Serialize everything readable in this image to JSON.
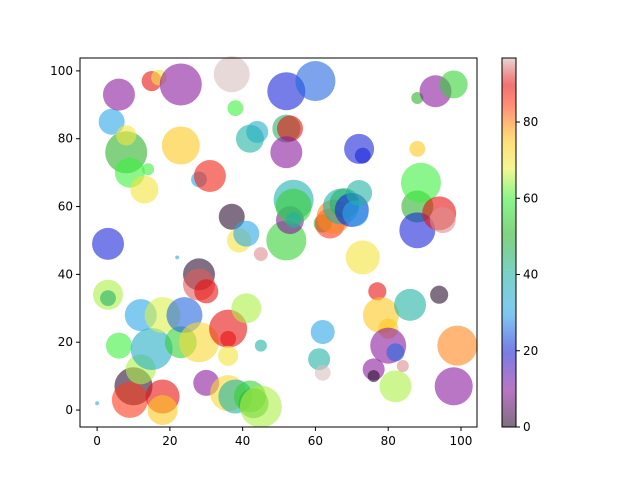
{
  "chart_data": {
    "type": "scatter",
    "x": [
      0,
      3,
      3,
      3,
      4,
      6,
      6,
      8,
      8,
      9,
      10,
      9,
      12,
      12,
      13,
      14,
      15,
      15,
      17,
      18,
      18,
      18,
      22,
      23,
      23,
      23,
      24,
      28,
      28,
      28,
      28,
      30,
      30,
      31,
      36,
      36,
      36,
      36,
      37,
      37,
      38,
      38,
      39,
      41,
      41,
      42,
      42,
      43,
      44,
      45,
      45,
      45,
      52,
      53,
      52,
      52,
      52,
      53,
      54,
      54,
      54,
      60,
      61,
      62,
      62,
      62,
      64,
      65,
      67,
      68,
      70,
      71,
      72,
      72,
      73,
      73,
      77,
      76,
      76,
      78,
      80,
      80,
      82,
      82,
      84,
      86,
      88,
      88,
      88,
      88,
      89,
      93,
      94,
      94,
      95,
      98,
      98,
      99
    ],
    "y": [
      2,
      49,
      34,
      33,
      85,
      93,
      19,
      76,
      81,
      70,
      7,
      3,
      28,
      12,
      65,
      71,
      18,
      97,
      98,
      4,
      0,
      28,
      45,
      96,
      78,
      20,
      28,
      20,
      40,
      37,
      68,
      35,
      8,
      69,
      24,
      21,
      16,
      5,
      57,
      99,
      89,
      4,
      50,
      30,
      52,
      80,
      4,
      2,
      82,
      19,
      46,
      1,
      83,
      83,
      76,
      94,
      50,
      56,
      62,
      60,
      56,
      97,
      15,
      11,
      23,
      55,
      55,
      57,
      60,
      61,
      59,
      58,
      64,
      77,
      75,
      45,
      35,
      12,
      10,
      28,
      24,
      19,
      17,
      7,
      13,
      31,
      77,
      92,
      60,
      53,
      67,
      94,
      34,
      58,
      56,
      96,
      7,
      19
    ],
    "sizes": [
      8,
      530,
      465,
      130,
      350,
      530,
      350,
      915,
      210,
      465,
      750,
      670,
      530,
      465,
      405,
      75,
      915,
      210,
      130,
      600,
      465,
      670,
      8,
      915,
      750,
      530,
      670,
      830,
      530,
      530,
      130,
      300,
      350,
      530,
      750,
      130,
      210,
      670,
      350,
      670,
      130,
      600,
      300,
      465,
      350,
      405,
      530,
      465,
      250,
      75,
      100,
      915,
      405,
      350,
      530,
      750,
      830,
      405,
      830,
      670,
      130,
      830,
      250,
      130,
      300,
      170,
      465,
      600,
      670,
      465,
      600,
      350,
      350,
      465,
      130,
      600,
      170,
      250,
      75,
      670,
      210,
      670,
      170,
      530,
      75,
      530,
      130,
      75,
      530,
      670,
      830,
      530,
      170,
      600,
      350,
      405,
      750,
      830
    ],
    "c": [
      30,
      20,
      65,
      45,
      30,
      10,
      60,
      50,
      70,
      60,
      0,
      85,
      30,
      65,
      70,
      60,
      35,
      90,
      70,
      90,
      75,
      67,
      30,
      10,
      75,
      55,
      25,
      72,
      0,
      93,
      30,
      90,
      10,
      88,
      90,
      90,
      70,
      72,
      0,
      97,
      60,
      40,
      70,
      65,
      30,
      40,
      55,
      50,
      35,
      40,
      95,
      65,
      45,
      90,
      10,
      20,
      55,
      10,
      38,
      55,
      40,
      25,
      40,
      97,
      30,
      50,
      85,
      80,
      40,
      45,
      20,
      30,
      40,
      20,
      20,
      70,
      90,
      10,
      0,
      75,
      75,
      10,
      25,
      65,
      95,
      40,
      75,
      50,
      50,
      20,
      60,
      10,
      0,
      90,
      95,
      55,
      10,
      80
    ],
    "alpha": 0.6,
    "xlim": [
      -4.7,
      104.4
    ],
    "ylim": [
      -5,
      103.8
    ],
    "xticks": [
      0,
      20,
      40,
      60,
      80,
      100
    ],
    "yticks": [
      0,
      20,
      40,
      60,
      80,
      100
    ],
    "colorbar": {
      "clim": [
        0,
        96.8
      ],
      "ticks": [
        0,
        20,
        40,
        60,
        80
      ],
      "colormap": [
        [
          0,
          "#2b0f2e"
        ],
        [
          10,
          "#8b1a9e"
        ],
        [
          20,
          "#1a26d8"
        ],
        [
          30,
          "#2ba7e8"
        ],
        [
          40,
          "#1fb3a3"
        ],
        [
          50,
          "#2db22d"
        ],
        [
          60,
          "#3ef03e"
        ],
        [
          68,
          "#f0f04a"
        ],
        [
          76,
          "#ffc21a"
        ],
        [
          85,
          "#ff3a1a"
        ],
        [
          90,
          "#e81010"
        ],
        [
          97,
          "#d8c0c0"
        ]
      ]
    }
  }
}
